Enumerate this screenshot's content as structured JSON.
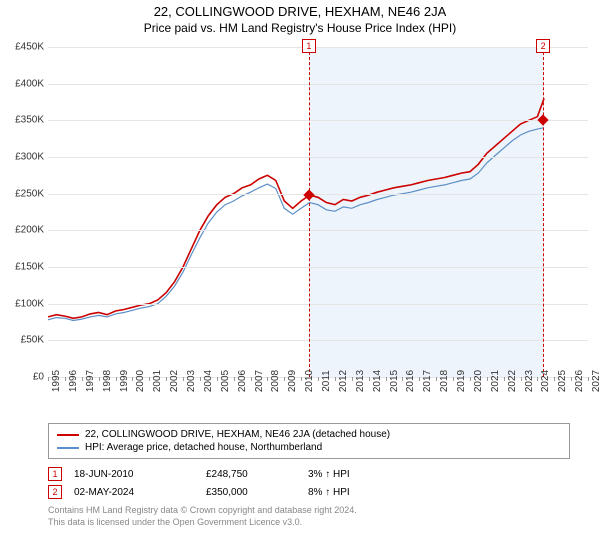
{
  "title": "22, COLLINGWOOD DRIVE, HEXHAM, NE46 2JA",
  "subtitle": "Price paid vs. HM Land Registry's House Price Index (HPI)",
  "chart": {
    "type": "line",
    "background_color": "#ffffff",
    "grid_color": "#e5e5e5",
    "shade_color": "#eef4fb",
    "shade_start_year": 2010.46,
    "shade_end_year": 2024.42,
    "xlim": [
      1995,
      2027
    ],
    "xtick_step": 1,
    "ylim": [
      0,
      450000
    ],
    "ytick_step": 50000,
    "yticks_labels": [
      "£0",
      "£50K",
      "£100K",
      "£150K",
      "£200K",
      "£250K",
      "£300K",
      "£350K",
      "£400K",
      "£450K"
    ],
    "label_fontsize": 10,
    "title_fontsize": 13,
    "series": [
      {
        "name": "22, COLLINGWOOD DRIVE, HEXHAM, NE46 2JA (detached house)",
        "color": "#cc0000",
        "line_width": 1.6,
        "x": [
          1995,
          1995.5,
          1996,
          1996.5,
          1997,
          1997.5,
          1998,
          1998.5,
          1999,
          1999.5,
          2000,
          2000.5,
          2001,
          2001.5,
          2002,
          2002.5,
          2003,
          2003.5,
          2004,
          2004.5,
          2005,
          2005.5,
          2006,
          2006.5,
          2007,
          2007.5,
          2008,
          2008.5,
          2009,
          2009.5,
          2010,
          2010.5,
          2011,
          2011.5,
          2012,
          2012.5,
          2013,
          2013.5,
          2014,
          2014.5,
          2015,
          2015.5,
          2016,
          2016.5,
          2017,
          2017.5,
          2018,
          2018.5,
          2019,
          2019.5,
          2020,
          2020.5,
          2021,
          2021.5,
          2022,
          2022.5,
          2023,
          2023.5,
          2024,
          2024.4
        ],
        "y": [
          82000,
          85000,
          83000,
          80000,
          82000,
          86000,
          88000,
          85000,
          90000,
          92000,
          95000,
          98000,
          100000,
          105000,
          115000,
          130000,
          150000,
          175000,
          200000,
          220000,
          235000,
          245000,
          250000,
          258000,
          262000,
          270000,
          275000,
          268000,
          240000,
          230000,
          240000,
          248000,
          245000,
          238000,
          235000,
          242000,
          240000,
          245000,
          248000,
          252000,
          255000,
          258000,
          260000,
          262000,
          265000,
          268000,
          270000,
          272000,
          275000,
          278000,
          280000,
          290000,
          305000,
          315000,
          325000,
          335000,
          345000,
          350000,
          355000,
          380000
        ]
      },
      {
        "name": "HPI: Average price, detached house, Northumberland",
        "color": "#5b8fc7",
        "line_width": 1.2,
        "x": [
          1995,
          1995.5,
          1996,
          1996.5,
          1997,
          1997.5,
          1998,
          1998.5,
          1999,
          1999.5,
          2000,
          2000.5,
          2001,
          2001.5,
          2002,
          2002.5,
          2003,
          2003.5,
          2004,
          2004.5,
          2005,
          2005.5,
          2006,
          2006.5,
          2007,
          2007.5,
          2008,
          2008.5,
          2009,
          2009.5,
          2010,
          2010.5,
          2011,
          2011.5,
          2012,
          2012.5,
          2013,
          2013.5,
          2014,
          2014.5,
          2015,
          2015.5,
          2016,
          2016.5,
          2017,
          2017.5,
          2018,
          2018.5,
          2019,
          2019.5,
          2020,
          2020.5,
          2021,
          2021.5,
          2022,
          2022.5,
          2023,
          2023.5,
          2024,
          2024.4
        ],
        "y": [
          78000,
          81000,
          80000,
          77000,
          79000,
          82000,
          84000,
          82000,
          86000,
          88000,
          91000,
          94000,
          96000,
          100000,
          110000,
          124000,
          143000,
          167000,
          190000,
          210000,
          225000,
          235000,
          240000,
          247000,
          252000,
          258000,
          263000,
          257000,
          230000,
          222000,
          230000,
          238000,
          235000,
          228000,
          226000,
          232000,
          230000,
          235000,
          238000,
          242000,
          245000,
          248000,
          250000,
          252000,
          255000,
          258000,
          260000,
          262000,
          265000,
          268000,
          270000,
          278000,
          292000,
          302000,
          312000,
          322000,
          330000,
          335000,
          338000,
          340000
        ]
      }
    ],
    "markers": [
      {
        "index": 1,
        "year": 2010.46,
        "value": 248750
      },
      {
        "index": 2,
        "year": 2024.34,
        "value": 350000
      }
    ]
  },
  "legend": {
    "items": [
      {
        "color": "#cc0000",
        "label": "22, COLLINGWOOD DRIVE, HEXHAM, NE46 2JA (detached house)"
      },
      {
        "color": "#5b8fc7",
        "label": "HPI: Average price, detached house, Northumberland"
      }
    ]
  },
  "sales": [
    {
      "index": "1",
      "date": "18-JUN-2010",
      "price": "£248,750",
      "pct": "3% ↑ HPI"
    },
    {
      "index": "2",
      "date": "02-MAY-2024",
      "price": "£350,000",
      "pct": "8% ↑ HPI"
    }
  ],
  "footer_line1": "Contains HM Land Registry data © Crown copyright and database right 2024.",
  "footer_line2": "This data is licensed under the Open Government Licence v3.0."
}
